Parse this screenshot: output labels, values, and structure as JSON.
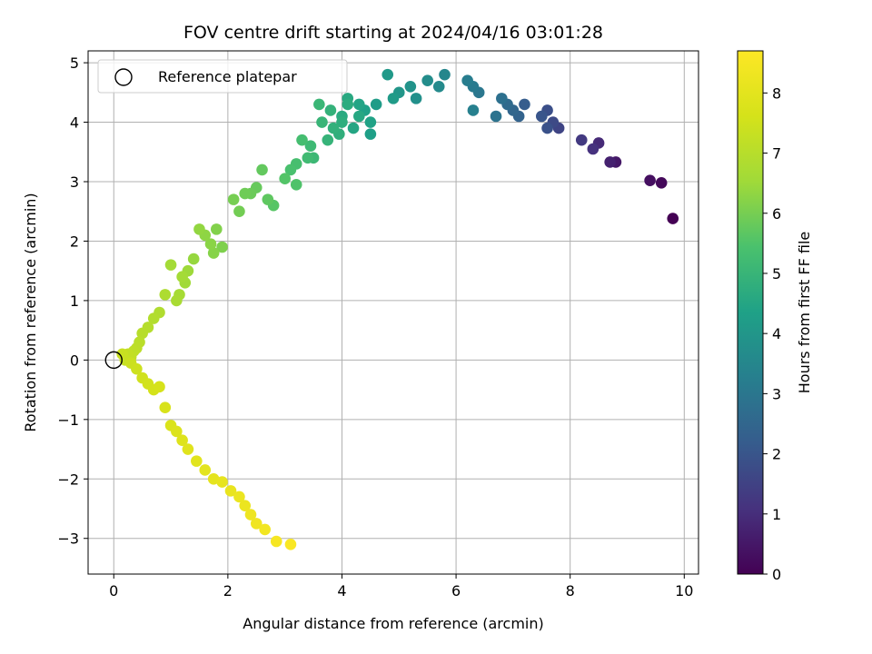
{
  "chart_data": {
    "type": "scatter",
    "title": "FOV centre drift starting at 2024/04/16 03:01:28",
    "xlabel": "Angular distance from reference (arcmin)",
    "ylabel": "Rotation from reference (arcmin)",
    "xlim": [
      -0.45,
      10.25
    ],
    "ylim": [
      -3.6,
      5.2
    ],
    "xticks": [
      "0",
      "2",
      "4",
      "6",
      "8",
      "10"
    ],
    "yticks": [
      "−3",
      "−2",
      "−1",
      "0",
      "1",
      "2",
      "3",
      "4",
      "5"
    ],
    "grid": true,
    "legend": {
      "location": "upper-left",
      "entries": [
        "Reference platepar"
      ]
    },
    "reference_point": {
      "x": 0,
      "y": 0,
      "marker": "open-circle"
    },
    "colorbar": {
      "label": "Hours from first FF file",
      "range": [
        0,
        8.7
      ],
      "ticks": [
        "0",
        "1",
        "2",
        "3",
        "4",
        "5",
        "6",
        "7",
        "8"
      ],
      "colormap": "viridis"
    },
    "series": [
      {
        "x": [
          9.8,
          9.6,
          9.4,
          8.8,
          8.7,
          8.5,
          8.4,
          8.2,
          7.8,
          7.7,
          7.6,
          7.6,
          7.5,
          7.2,
          7.1,
          7.0,
          6.9,
          6.8,
          6.7,
          6.4,
          6.3,
          6.2,
          6.3,
          5.8,
          5.7,
          5.5,
          5.3,
          5.2,
          5.0,
          4.8,
          4.9,
          4.6,
          4.5,
          4.4,
          4.5,
          4.3,
          4.2,
          4.3,
          4.1,
          4.0,
          4.1,
          4.0,
          3.95,
          3.85,
          3.8,
          3.75,
          3.65,
          3.6,
          3.5,
          3.45,
          3.4,
          3.3,
          3.2,
          3.1,
          3.2,
          3.0,
          2.8,
          2.7,
          2.6,
          2.5,
          2.4,
          2.3,
          2.2,
          2.1,
          1.9,
          1.8,
          1.75,
          1.7,
          1.6,
          1.5,
          1.4,
          1.3,
          1.25,
          1.2,
          1.15,
          1.1,
          1.0,
          0.9,
          0.8,
          0.7,
          0.6,
          0.5,
          0.45,
          0.4,
          0.35,
          0.3,
          0.25,
          0.2,
          0.15,
          0.3,
          0.4,
          0.5,
          0.6,
          0.7,
          0.8,
          0.9,
          1.0,
          1.1,
          1.2,
          1.3,
          1.45,
          1.6,
          1.75,
          1.9,
          2.05,
          2.2,
          2.3,
          2.4,
          2.5,
          2.65,
          2.85,
          3.1
        ],
        "y": [
          2.38,
          2.98,
          3.02,
          3.33,
          3.33,
          3.65,
          3.55,
          3.7,
          3.9,
          4.0,
          4.2,
          3.9,
          4.1,
          4.3,
          4.1,
          4.2,
          4.3,
          4.4,
          4.1,
          4.5,
          4.6,
          4.7,
          4.2,
          4.8,
          4.6,
          4.7,
          4.4,
          4.6,
          4.5,
          4.8,
          4.4,
          4.3,
          3.8,
          4.2,
          4.0,
          4.3,
          3.9,
          4.1,
          4.4,
          4.1,
          4.3,
          4.0,
          3.8,
          3.9,
          4.2,
          3.7,
          4.0,
          4.3,
          3.4,
          3.6,
          3.4,
          3.7,
          3.3,
          3.2,
          2.95,
          3.05,
          2.6,
          2.7,
          3.2,
          2.9,
          2.8,
          2.8,
          2.5,
          2.7,
          1.9,
          2.2,
          1.8,
          1.95,
          2.1,
          2.2,
          1.7,
          1.5,
          1.3,
          1.4,
          1.1,
          1.0,
          1.6,
          1.1,
          0.8,
          0.7,
          0.55,
          0.45,
          0.3,
          0.2,
          0.15,
          0.05,
          0.1,
          0.0,
          0.1,
          -0.05,
          -0.15,
          -0.3,
          -0.4,
          -0.5,
          -0.45,
          -0.8,
          -1.1,
          -1.2,
          -1.35,
          -1.5,
          -1.7,
          -1.85,
          -2.0,
          -2.05,
          -2.2,
          -2.3,
          -2.45,
          -2.6,
          -2.75,
          -2.85,
          -3.05,
          -3.1
        ],
        "hours": [
          0.0,
          0.15,
          0.3,
          0.5,
          0.7,
          0.9,
          1.1,
          1.3,
          1.55,
          1.7,
          1.85,
          1.9,
          2.0,
          2.2,
          2.4,
          2.5,
          2.6,
          2.8,
          2.9,
          3.0,
          3.1,
          3.2,
          3.3,
          3.5,
          3.6,
          3.7,
          3.8,
          3.9,
          4.0,
          4.1,
          4.15,
          4.2,
          4.3,
          4.35,
          4.4,
          4.45,
          4.5,
          4.55,
          4.6,
          4.65,
          4.7,
          4.75,
          4.8,
          4.85,
          4.9,
          4.95,
          5.0,
          5.05,
          5.1,
          5.15,
          5.2,
          5.3,
          5.35,
          5.4,
          5.5,
          5.55,
          5.6,
          5.7,
          5.75,
          5.8,
          5.85,
          5.9,
          5.95,
          6.0,
          6.1,
          6.15,
          6.2,
          6.25,
          6.3,
          6.35,
          6.4,
          6.5,
          6.55,
          6.6,
          6.65,
          6.7,
          6.6,
          6.8,
          6.85,
          6.9,
          6.95,
          7.0,
          7.05,
          7.1,
          7.15,
          7.2,
          7.25,
          7.3,
          7.35,
          7.4,
          7.45,
          7.5,
          7.55,
          7.6,
          7.65,
          7.7,
          7.75,
          7.8,
          7.85,
          7.9,
          7.95,
          8.0,
          8.05,
          8.1,
          8.15,
          8.2,
          8.25,
          8.3,
          8.35,
          8.4,
          8.5,
          8.6
        ]
      }
    ]
  }
}
